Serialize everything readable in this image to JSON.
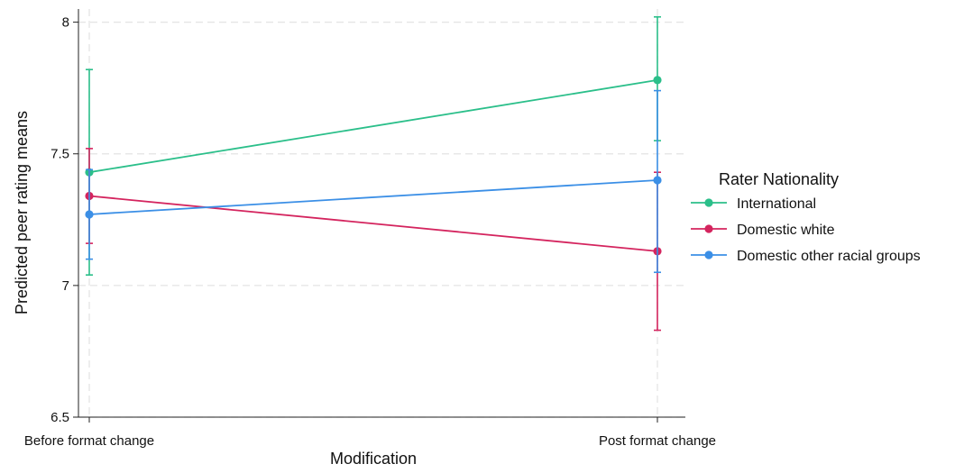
{
  "chart_data": {
    "type": "line",
    "title": "",
    "xlabel": "Modification",
    "ylabel": "Predicted peer rating means",
    "categories": [
      "Before format change",
      "Post format change"
    ],
    "ylim": [
      6.5,
      8.05
    ],
    "yticks": [
      6.5,
      7,
      7.5,
      8
    ],
    "ytick_labels": [
      "6.5",
      "7",
      "7.5",
      "8"
    ],
    "grid": true,
    "error_bars": true,
    "legend": {
      "title": "Rater Nationality",
      "position": "right"
    },
    "series": [
      {
        "name": "International",
        "color": "#2bbf8a",
        "values": [
          7.43,
          7.78
        ],
        "lower": [
          7.04,
          7.55
        ],
        "upper": [
          7.82,
          8.02
        ]
      },
      {
        "name": "Domestic white",
        "color": "#d4245e",
        "values": [
          7.34,
          7.13
        ],
        "lower": [
          7.16,
          6.83
        ],
        "upper": [
          7.52,
          7.43
        ]
      },
      {
        "name": "Domestic other racial groups",
        "color": "#3b8fe6",
        "values": [
          7.27,
          7.4
        ],
        "lower": [
          7.1,
          7.05
        ],
        "upper": [
          7.44,
          7.74
        ]
      }
    ]
  }
}
